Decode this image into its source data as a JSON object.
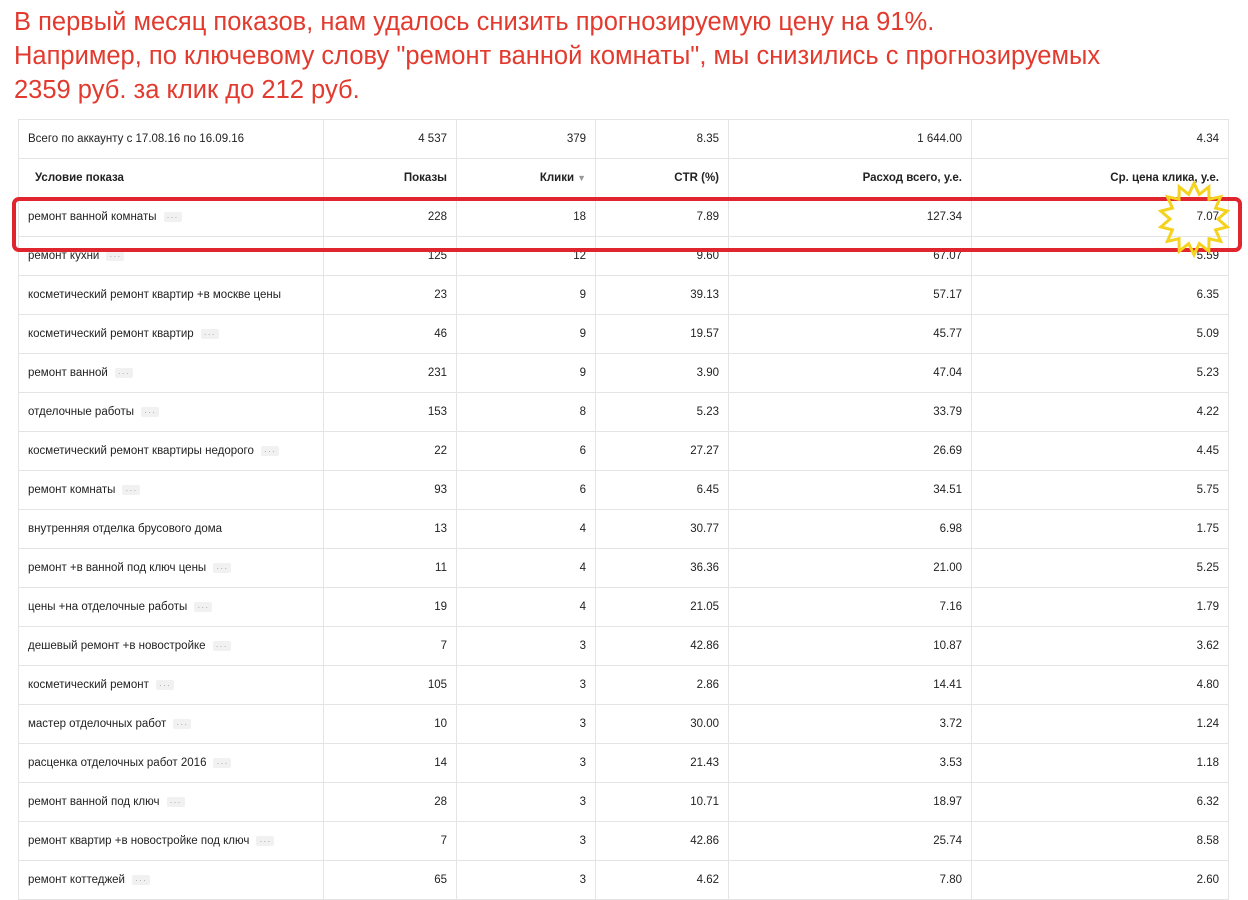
{
  "headline": {
    "line1": "В первый месяц показов, нам удалось снизить прогнозируемую цену на 91%.",
    "line2": "Например, по ключевому слову \"ремонт ванной комнаты\", мы снизились с прогнозируемых",
    "line3": "2359 руб. за клик до  212 руб."
  },
  "summary": {
    "label": "Всего по аккаунту с 17.08.16 по 16.09.16",
    "shows": "4 537",
    "clicks": "379",
    "ctr": "8.35",
    "spend": "1 644.00",
    "cpc": "4.34"
  },
  "columns": {
    "condition": "Условие показа",
    "shows": "Показы",
    "clicks": "Клики",
    "ctr": "CTR (%)",
    "spend": "Расход всего, у.е.",
    "cpc": "Ср. цена клика, у.е."
  },
  "icons": {
    "sort": "triangle-down",
    "sort_glyph": "▼",
    "more": "ellipsis",
    "more_glyph": "···"
  },
  "highlight_color": "#e0252f",
  "star_color": "#f5d21e",
  "rows": [
    {
      "name": "ремонт ванной комнаты",
      "shows": "228",
      "clicks": "18",
      "ctr": "7.89",
      "spend": "127.34",
      "cpc": "7.07",
      "more": true
    },
    {
      "name": "ремонт кухни",
      "shows": "125",
      "clicks": "12",
      "ctr": "9.60",
      "spend": "67.07",
      "cpc": "5.59",
      "more": true
    },
    {
      "name": "косметический ремонт квартир +в москве цены",
      "shows": "23",
      "clicks": "9",
      "ctr": "39.13",
      "spend": "57.17",
      "cpc": "6.35",
      "more": false
    },
    {
      "name": "косметический ремонт квартир",
      "shows": "46",
      "clicks": "9",
      "ctr": "19.57",
      "spend": "45.77",
      "cpc": "5.09",
      "more": true
    },
    {
      "name": "ремонт ванной",
      "shows": "231",
      "clicks": "9",
      "ctr": "3.90",
      "spend": "47.04",
      "cpc": "5.23",
      "more": true
    },
    {
      "name": "отделочные работы",
      "shows": "153",
      "clicks": "8",
      "ctr": "5.23",
      "spend": "33.79",
      "cpc": "4.22",
      "more": true
    },
    {
      "name": "косметический ремонт квартиры недорого",
      "shows": "22",
      "clicks": "6",
      "ctr": "27.27",
      "spend": "26.69",
      "cpc": "4.45",
      "more": true
    },
    {
      "name": "ремонт комнаты",
      "shows": "93",
      "clicks": "6",
      "ctr": "6.45",
      "spend": "34.51",
      "cpc": "5.75",
      "more": true
    },
    {
      "name": "внутренняя отделка брусового дома",
      "shows": "13",
      "clicks": "4",
      "ctr": "30.77",
      "spend": "6.98",
      "cpc": "1.75",
      "more": false
    },
    {
      "name": "ремонт +в ванной под ключ цены",
      "shows": "11",
      "clicks": "4",
      "ctr": "36.36",
      "spend": "21.00",
      "cpc": "5.25",
      "more": true
    },
    {
      "name": "цены +на отделочные работы",
      "shows": "19",
      "clicks": "4",
      "ctr": "21.05",
      "spend": "7.16",
      "cpc": "1.79",
      "more": true
    },
    {
      "name": "дешевый ремонт +в новостройке",
      "shows": "7",
      "clicks": "3",
      "ctr": "42.86",
      "spend": "10.87",
      "cpc": "3.62",
      "more": true
    },
    {
      "name": "косметический ремонт",
      "shows": "105",
      "clicks": "3",
      "ctr": "2.86",
      "spend": "14.41",
      "cpc": "4.80",
      "more": true
    },
    {
      "name": "мастер отделочных работ",
      "shows": "10",
      "clicks": "3",
      "ctr": "30.00",
      "spend": "3.72",
      "cpc": "1.24",
      "more": true
    },
    {
      "name": "расценка отделочных работ 2016",
      "shows": "14",
      "clicks": "3",
      "ctr": "21.43",
      "spend": "3.53",
      "cpc": "1.18",
      "more": true
    },
    {
      "name": "ремонт ванной под ключ",
      "shows": "28",
      "clicks": "3",
      "ctr": "10.71",
      "spend": "18.97",
      "cpc": "6.32",
      "more": true
    },
    {
      "name": "ремонт квартир +в новостройке под ключ",
      "shows": "7",
      "clicks": "3",
      "ctr": "42.86",
      "spend": "25.74",
      "cpc": "8.58",
      "more": true
    },
    {
      "name": "ремонт коттеджей",
      "shows": "65",
      "clicks": "3",
      "ctr": "4.62",
      "spend": "7.80",
      "cpc": "2.60",
      "more": true
    }
  ]
}
